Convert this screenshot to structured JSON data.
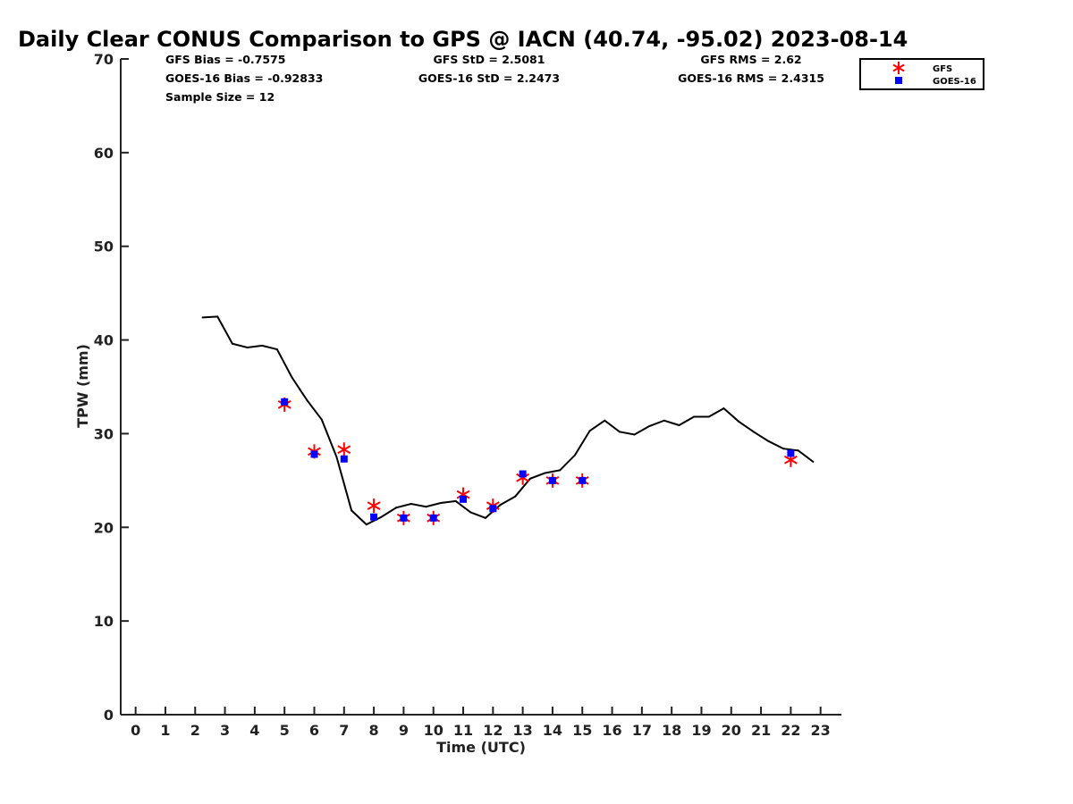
{
  "chart_data": {
    "type": "scatter",
    "title": "Daily Clear CONUS Comparison to GPS @ IACN (40.74, -95.02) 2023-08-14",
    "xlabel": "Time (UTC)",
    "ylabel": "TPW (mm)",
    "xlim": [
      -0.5,
      23.7
    ],
    "ylim": [
      0,
      70
    ],
    "xticks": [
      "0",
      "1",
      "2",
      "3",
      "4",
      "5",
      "6",
      "7",
      "8",
      "9",
      "10",
      "11",
      "12",
      "13",
      "14",
      "15",
      "16",
      "17",
      "18",
      "19",
      "20",
      "21",
      "22",
      "23"
    ],
    "yticks": [
      "0",
      "10",
      "20",
      "30",
      "40",
      "50",
      "60",
      "70"
    ],
    "grid": false,
    "legend_position": "top-right",
    "stats": [
      [
        "GFS Bias = -0.7575",
        "GFS StD = 2.5081",
        "GFS RMS = 2.62"
      ],
      [
        "GOES-16 Bias = -0.92833",
        "GOES-16 StD = 2.2473",
        "GOES-16 RMS = 2.4315"
      ],
      [
        "Sample Size = 12",
        "",
        ""
      ]
    ],
    "series": [
      {
        "kind": "line",
        "color": "#000000",
        "x": [
          2.25,
          2.75,
          3.25,
          3.75,
          4.25,
          4.75,
          5.25,
          5.75,
          6.25,
          6.75,
          7.25,
          7.75,
          8.25,
          8.75,
          9.25,
          9.75,
          10.25,
          10.75,
          11.25,
          11.75,
          12.25,
          12.75,
          13.25,
          13.75,
          14.25,
          14.75,
          15.25,
          15.75,
          16.25,
          16.75,
          17.25,
          17.75,
          18.25,
          18.75,
          19.25,
          19.75,
          20.25,
          20.75,
          21.25,
          21.75,
          22.25,
          22.75
        ],
        "y": [
          42.4,
          42.5,
          39.6,
          39.2,
          39.4,
          39.0,
          36.0,
          33.6,
          31.5,
          27.5,
          21.8,
          20.3,
          21.1,
          22.1,
          22.5,
          22.2,
          22.6,
          22.8,
          21.6,
          21.0,
          22.4,
          23.3,
          25.2,
          25.8,
          26.1,
          27.7,
          30.3,
          31.4,
          30.2,
          29.9,
          30.8,
          31.4,
          30.9,
          31.8,
          31.8,
          32.7,
          31.3,
          30.2,
          29.2,
          28.4,
          28.2,
          27.0
        ]
      },
      {
        "name": "GFS",
        "kind": "marker",
        "marker": "asterisk",
        "color": "#ff0000",
        "x": [
          5,
          6,
          7,
          8,
          9,
          10,
          11,
          12,
          13,
          14,
          15,
          22
        ],
        "y": [
          33.1,
          28.1,
          28.3,
          22.3,
          21.0,
          21.0,
          23.5,
          22.3,
          25.3,
          25.0,
          25.0,
          27.2
        ]
      },
      {
        "name": "GOES-16",
        "kind": "marker",
        "marker": "square",
        "color": "#0000ff",
        "x": [
          5,
          6,
          7,
          8,
          9,
          10,
          11,
          12,
          13,
          14,
          15,
          22
        ],
        "y": [
          33.4,
          27.8,
          27.3,
          21.1,
          21.0,
          21.0,
          23.0,
          22.0,
          25.7,
          25.0,
          25.0,
          27.9
        ]
      }
    ]
  }
}
